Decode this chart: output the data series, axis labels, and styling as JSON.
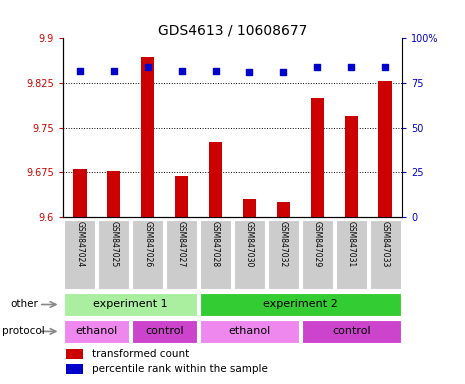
{
  "title": "GDS4613 / 10608677",
  "samples": [
    "GSM847024",
    "GSM847025",
    "GSM847026",
    "GSM847027",
    "GSM847028",
    "GSM847030",
    "GSM847032",
    "GSM847029",
    "GSM847031",
    "GSM847033"
  ],
  "transformed_counts": [
    9.681,
    9.678,
    9.869,
    9.668,
    9.726,
    9.63,
    9.625,
    9.8,
    9.77,
    9.828
  ],
  "percentile_ranks": [
    82,
    82,
    84,
    82,
    82,
    81,
    81,
    84,
    84,
    84
  ],
  "ymin": 9.6,
  "ymax": 9.9,
  "yticks": [
    9.6,
    9.675,
    9.75,
    9.825,
    9.9
  ],
  "ytick_labels": [
    "9.6",
    "9.675",
    "9.75",
    "9.825",
    "9.9"
  ],
  "right_yticks": [
    0,
    25,
    50,
    75,
    100
  ],
  "right_ytick_labels": [
    "0",
    "25",
    "50",
    "75",
    "100%"
  ],
  "bar_color": "#CC0000",
  "dot_color": "#0000CC",
  "bar_width": 0.4,
  "groups_other": [
    {
      "label": "experiment 1",
      "start": 0,
      "end": 4,
      "color": "#AAEEA0"
    },
    {
      "label": "experiment 2",
      "start": 4,
      "end": 10,
      "color": "#33CC33"
    }
  ],
  "groups_protocol": [
    {
      "label": "ethanol",
      "start": 0,
      "end": 2,
      "color": "#EE88EE"
    },
    {
      "label": "control",
      "start": 2,
      "end": 4,
      "color": "#CC44CC"
    },
    {
      "label": "ethanol",
      "start": 4,
      "end": 7,
      "color": "#EE88EE"
    },
    {
      "label": "control",
      "start": 7,
      "end": 10,
      "color": "#CC44CC"
    }
  ],
  "legend": [
    {
      "label": "transformed count",
      "color": "#CC0000"
    },
    {
      "label": "percentile rank within the sample",
      "color": "#0000CC"
    }
  ],
  "ylabel_color": "#CC0000",
  "right_ylabel_color": "#0000CC",
  "tick_label_fontsize": 7,
  "title_fontsize": 10,
  "sample_fontsize": 5.5,
  "row_label_fontsize": 7.5,
  "group_fontsize": 8,
  "legend_fontsize": 7.5
}
